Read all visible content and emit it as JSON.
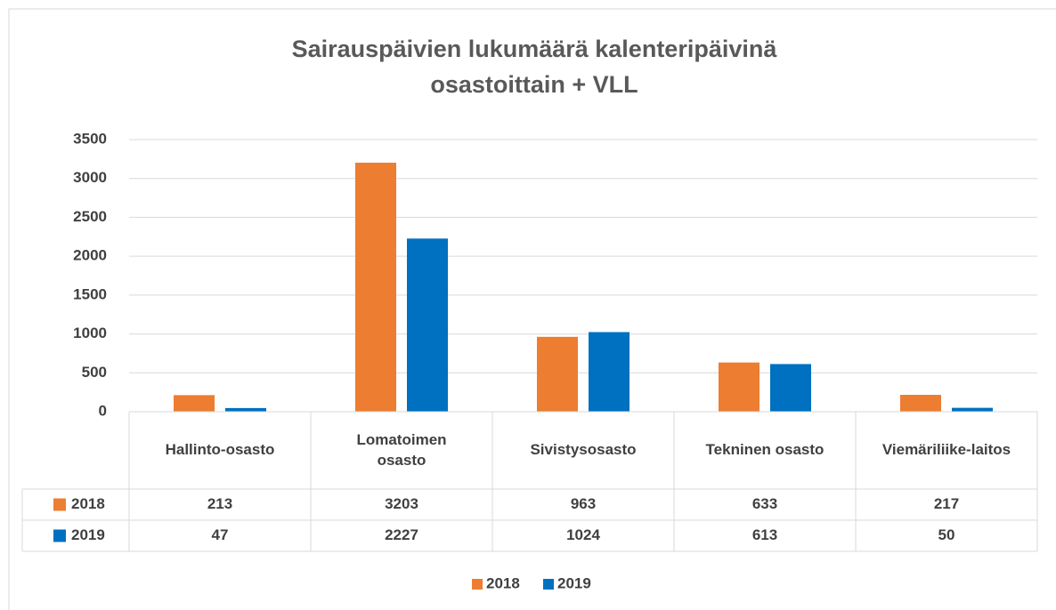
{
  "chart_data": {
    "type": "bar",
    "title": "Sairauspäivien lukumäärä kalenteripäivinä osastoittain + VLL",
    "categories": [
      "Hallinto-osasto",
      "Lomatoimen osasto",
      "Sivistysosasto",
      "Tekninen osasto",
      "Viemäriliike-laitos"
    ],
    "series": [
      {
        "name": "2018",
        "color": "#ed7d31",
        "values": [
          213,
          3203,
          963,
          633,
          217
        ]
      },
      {
        "name": "2019",
        "color": "#0070c0",
        "values": [
          47,
          2227,
          1024,
          613,
          50
        ]
      }
    ],
    "ylim": [
      0,
      3500
    ],
    "yticks": [
      0,
      500,
      1000,
      1500,
      2000,
      2500,
      3000,
      3500
    ],
    "grid": true,
    "legend": "bottom",
    "data_table": true
  }
}
